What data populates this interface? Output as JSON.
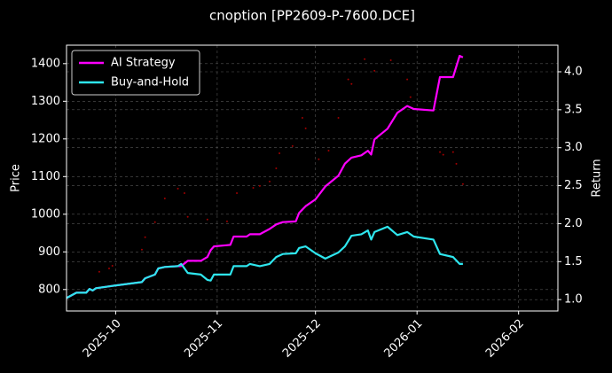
{
  "chart_data": [
    {
      "type": "line",
      "title": "cnoption [PP2609-P-7600.DCE]",
      "y2label": "Return",
      "xlim": [
        "2025-09-16",
        "2026-02-13"
      ],
      "xticks": [
        {
          "value": "2025-10-01",
          "label": "2025-10"
        },
        {
          "value": "2025-11-01",
          "label": "2025-11"
        },
        {
          "value": "2025-12-01",
          "label": "2025-12"
        },
        {
          "value": "2026-01-01",
          "label": "2026-01"
        },
        {
          "value": "2026-02-01",
          "label": "2026-02"
        }
      ],
      "y2lim": [
        0.85,
        4.35
      ],
      "y2ticks": [
        {
          "value": 1,
          "label": "1.0"
        },
        1.5,
        {
          "value": 2,
          "label": "2.0"
        },
        2.5,
        {
          "value": 3,
          "label": "3.0"
        },
        3.5,
        {
          "value": 4,
          "label": "4.0"
        }
      ],
      "grid": true,
      "legend": "upper left",
      "x": [
        "2025-09-16",
        "2025-09-19",
        "2025-09-22",
        "2025-09-23",
        "2025-09-24",
        "2025-09-25",
        "2025-09-30",
        "2025-10-09",
        "2025-10-10",
        "2025-10-13",
        "2025-10-14",
        "2025-10-16",
        "2025-10-20",
        "2025-10-21",
        "2025-10-23",
        "2025-10-27",
        "2025-10-29",
        "2025-10-30",
        "2025-10-31",
        "2025-11-05",
        "2025-11-06",
        "2025-11-10",
        "2025-11-11",
        "2025-11-14",
        "2025-11-17",
        "2025-11-19",
        "2025-11-21",
        "2025-11-25",
        "2025-11-26",
        "2025-11-28",
        "2025-12-01",
        "2025-12-04",
        "2025-12-08",
        "2025-12-10",
        "2025-12-12",
        "2025-12-15",
        "2025-12-17",
        "2025-12-18",
        "2025-12-19",
        "2025-12-23",
        "2025-12-26",
        "2025-12-29",
        "2025-12-31",
        "2026-01-06",
        "2026-01-08",
        "2026-01-12",
        "2026-01-14",
        "2026-01-15"
      ],
      "series": [
        {
          "name": "AI Strategy",
          "color": "#ff00ff",
          "axis": "y2",
          "values": [
            1.02,
            1.09,
            1.09,
            1.14,
            1.12,
            1.15,
            1.18,
            1.23,
            1.28,
            1.33,
            1.41,
            1.43,
            1.44,
            1.44,
            1.51,
            1.51,
            1.56,
            1.65,
            1.7,
            1.72,
            1.83,
            1.83,
            1.86,
            1.86,
            1.93,
            1.99,
            2.02,
            2.03,
            2.14,
            2.23,
            2.32,
            2.49,
            2.63,
            2.79,
            2.87,
            2.9,
            2.96,
            2.91,
            3.11,
            3.25,
            3.46,
            3.55,
            3.51,
            3.49,
            3.93,
            3.93,
            4.21,
            4.19
          ]
        },
        {
          "name": "Buy-and-Hold",
          "color": "#2ee6ee",
          "axis": "y2",
          "values": [
            1.02,
            1.09,
            1.09,
            1.14,
            1.12,
            1.15,
            1.18,
            1.23,
            1.28,
            1.33,
            1.41,
            1.43,
            1.44,
            1.47,
            1.35,
            1.33,
            1.26,
            1.25,
            1.33,
            1.33,
            1.44,
            1.44,
            1.47,
            1.44,
            1.47,
            1.56,
            1.6,
            1.61,
            1.68,
            1.7,
            1.61,
            1.54,
            1.62,
            1.7,
            1.84,
            1.86,
            1.91,
            1.79,
            1.89,
            1.96,
            1.85,
            1.89,
            1.83,
            1.79,
            1.6,
            1.56,
            1.47,
            1.47
          ]
        }
      ]
    },
    {
      "type": "scatter",
      "ylabel": "Price",
      "color": "#a00000",
      "ylim": [
        743,
        1449
      ],
      "yticks": [
        800,
        900,
        1000,
        1100,
        1200,
        1300,
        1400
      ],
      "x": [
        "2025-09-26",
        "2025-09-29",
        "2025-09-30",
        "2025-10-09",
        "2025-10-10",
        "2025-10-13",
        "2025-10-16",
        "2025-10-20",
        "2025-10-22",
        "2025-10-23",
        "2025-10-29",
        "2025-11-04",
        "2025-11-07",
        "2025-11-12",
        "2025-11-14",
        "2025-11-17",
        "2025-11-19",
        "2025-11-20",
        "2025-11-24",
        "2025-11-27",
        "2025-11-28",
        "2025-12-02",
        "2025-12-05",
        "2025-12-08",
        "2025-12-11",
        "2025-12-12",
        "2025-12-16",
        "2025-12-19",
        "2025-12-24",
        "2025-12-29",
        "2025-12-30",
        "2026-01-08",
        "2026-01-09",
        "2026-01-12",
        "2026-01-13",
        "2026-01-15"
      ],
      "values": [
        847,
        856,
        863,
        906,
        939,
        979,
        1042,
        1068,
        1056,
        993,
        986,
        981,
        1056,
        1070,
        1075,
        1087,
        1122,
        1162,
        1181,
        1256,
        1228,
        1146,
        1169,
        1256,
        1358,
        1346,
        1412,
        1381,
        1409,
        1358,
        1311,
        1165,
        1158,
        1165,
        1134,
        1080
      ]
    }
  ]
}
